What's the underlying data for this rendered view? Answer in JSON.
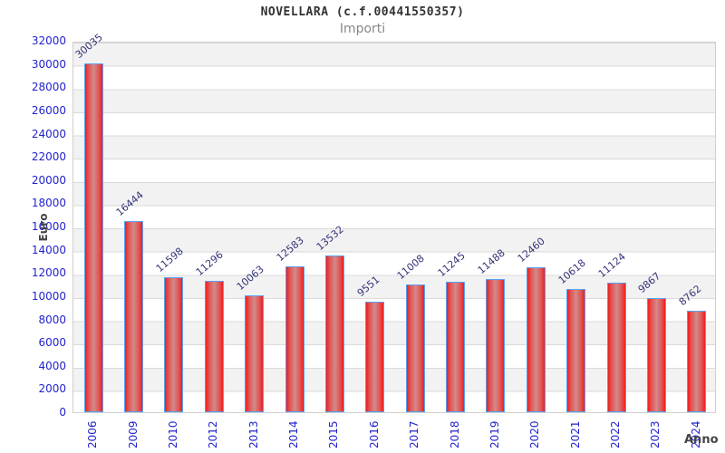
{
  "header": {
    "title": "NOVELLARA (c.f.00441550357)",
    "subtitle": "Importi"
  },
  "colors": {
    "bar_fill_edge": "#ee1f1f",
    "bar_fill_center": "#d28b8b",
    "bar_border": "#5aa0f0",
    "axis_tick_label": "#2323cd",
    "value_label": "#333377",
    "band_gray": "#f2f2f2",
    "gridline": "#dadada",
    "title_text": "#333333",
    "subtitle_text": "#888888",
    "axis_title_text": "#444444"
  },
  "chart_data": {
    "type": "bar",
    "title": "NOVELLARA (c.f.00441550357)",
    "subtitle": "Importi",
    "xlabel": "Anno",
    "ylabel": "Euro",
    "categories": [
      "2006",
      "2009",
      "2010",
      "2012",
      "2013",
      "2014",
      "2015",
      "2016",
      "2017",
      "2018",
      "2019",
      "2020",
      "2021",
      "2022",
      "2023",
      "2024"
    ],
    "values": [
      30035,
      16444,
      11598,
      11296,
      10063,
      12583,
      13532,
      9551,
      11008,
      11245,
      11488,
      12460,
      10618,
      11124,
      9867,
      8762
    ],
    "ylim": [
      0,
      32000
    ],
    "yticks": [
      0,
      2000,
      4000,
      6000,
      8000,
      10000,
      12000,
      14000,
      16000,
      18000,
      20000,
      22000,
      24000,
      26000,
      28000,
      30000,
      32000
    ],
    "grid": true,
    "banded_background": true,
    "legend": "none",
    "value_labels_rotation_deg": -40,
    "x_labels_rotation_deg": -90
  }
}
